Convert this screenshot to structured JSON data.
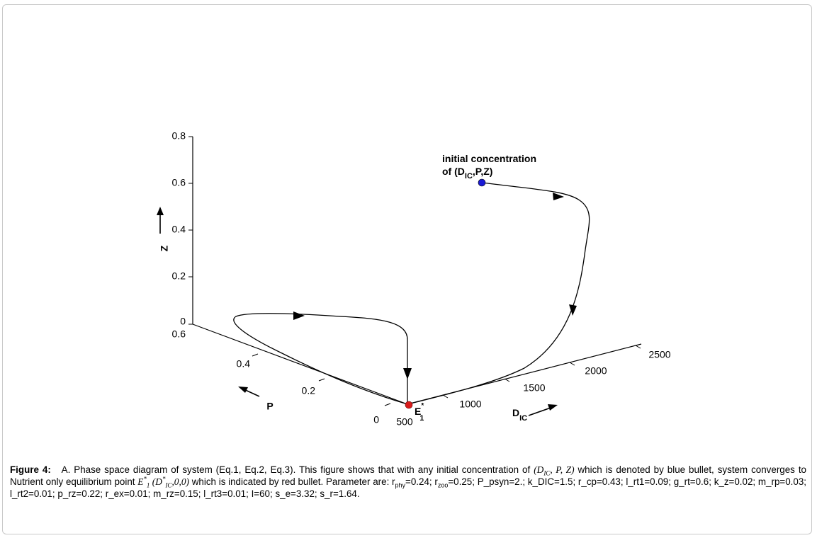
{
  "chart_data": {
    "type": "line",
    "title": "",
    "z_axis": {
      "label": "Z",
      "ticks": [
        "0",
        "0.2",
        "0.4",
        "0.6",
        "0.8"
      ],
      "range": [
        0,
        0.8
      ]
    },
    "p_axis": {
      "label": "P",
      "ticks": [
        "0",
        "0.2",
        "0.4",
        "0.6"
      ],
      "range": [
        0,
        0.6
      ]
    },
    "dic_axis": {
      "label_main": "D",
      "label_sub": "IC",
      "ticks": [
        "500",
        "1000",
        "1500",
        "2000",
        "2500"
      ],
      "range": [
        500,
        2500
      ]
    },
    "series": [
      {
        "points": [
          {
            "DIC": 1600,
            "P": 0.0,
            "Z": 0.6
          },
          {
            "DIC": 2050,
            "P": 0.0,
            "Z": 0.52
          },
          {
            "DIC": 2030,
            "P": 0.0,
            "Z": 0.25
          },
          {
            "DIC": 1800,
            "P": 0.0,
            "Z": 0.02
          },
          {
            "DIC": 1200,
            "P": 0.0,
            "Z": 0.0
          },
          {
            "DIC": 500,
            "P": 0.0,
            "Z": 0.0
          },
          {
            "DIC": 500,
            "P": 0.0,
            "Z": 0.15
          },
          {
            "DIC": 500,
            "P": 0.45,
            "Z": 0.08
          },
          {
            "DIC": 500,
            "P": 0.62,
            "Z": 0.0
          },
          {
            "DIC": 500,
            "P": 0.3,
            "Z": 0.0
          },
          {
            "DIC": 500,
            "P": 0.0,
            "Z": 0.0
          }
        ]
      }
    ],
    "initial_point": {
      "DIC": 1600,
      "P": 0.0,
      "Z": 0.6,
      "color": "#1a1ad6"
    },
    "equilibrium_point": {
      "DIC": 500,
      "P": 0.0,
      "Z": 0.0,
      "color": "#d91c1c"
    },
    "annotations": {
      "initial_line1": "initial concentration",
      "initial_line2_prefix": "of (D",
      "initial_line2_sub": "IC",
      "initial_line2_suffix": ",P,Z)",
      "eq_label": "E",
      "eq_sup": "*",
      "eq_sub": "1"
    }
  },
  "caption": {
    "lead": "Figure 4:",
    "part1": "A. Phase space diagram of system (Eq.1, Eq.2, Eq.3). This figure shows that with any initial concentration of ",
    "math_open": "(D",
    "math_sub": "IC",
    "math_rest": ", P, Z)",
    "part2": " which is denoted by blue bullet, system converges to Nutrient only equilibrium point ",
    "eq_E": "E",
    "eq_sup": "*",
    "eq_sub": "1",
    "eq_args_open": " (D",
    "eq_args_sup": "*",
    "eq_args_sub": "IC",
    "eq_args_rest": ",0,0)",
    "part3": " which is indicated by red bullet. Parameter are: r",
    "rphy_sub": "phy",
    "part4": "=0.24; r",
    "rzoo_sub": "zoo",
    "part5": "=0.25; P_psyn=2.; k_DIC=1.5; r_cp=0.43; l_rt1=0.09; g_rt=0.6; k_z=0.02; m_rp=0.03; l_rt2=0.01; p_rz=0.22; r_ex=0.01; m_rz=0.15; l_rt3=0.01; I=60; s_e=3.32; s_r=1.64."
  }
}
